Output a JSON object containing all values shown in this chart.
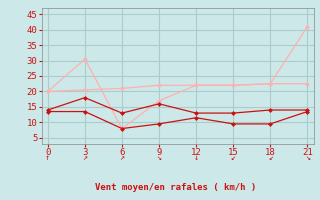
{
  "x": [
    0,
    3,
    6,
    9,
    12,
    15,
    18,
    21
  ],
  "line_gust": [
    20,
    30.5,
    8.0,
    17.0,
    22.0,
    22.0,
    22.5,
    41.0
  ],
  "line_flat": [
    20.0,
    20.5,
    21.0,
    22.0,
    22.0,
    22.0,
    22.5,
    22.5
  ],
  "line_upper_dark": [
    14.0,
    18.0,
    13.0,
    16.0,
    13.0,
    13.0,
    14.0,
    14.0
  ],
  "line_lower_dark": [
    13.5,
    13.5,
    8.0,
    9.5,
    11.5,
    9.5,
    9.5,
    13.5
  ],
  "color_light": "#ffb0b0",
  "color_dark": "#cc1111",
  "bg_color": "#cce8e8",
  "xlabel": "Vent moyen/en rafales ( km/h )",
  "ylim": [
    3,
    47
  ],
  "xlim": [
    -0.5,
    21.5
  ],
  "yticks": [
    5,
    10,
    15,
    20,
    25,
    30,
    35,
    40,
    45
  ],
  "xticks": [
    0,
    3,
    6,
    9,
    12,
    15,
    18,
    21
  ],
  "grid_color": "#aacccc",
  "arrow_chars": [
    "↑",
    "↗",
    "↗",
    "↘",
    "↓",
    "↙",
    "↙",
    "↘"
  ]
}
